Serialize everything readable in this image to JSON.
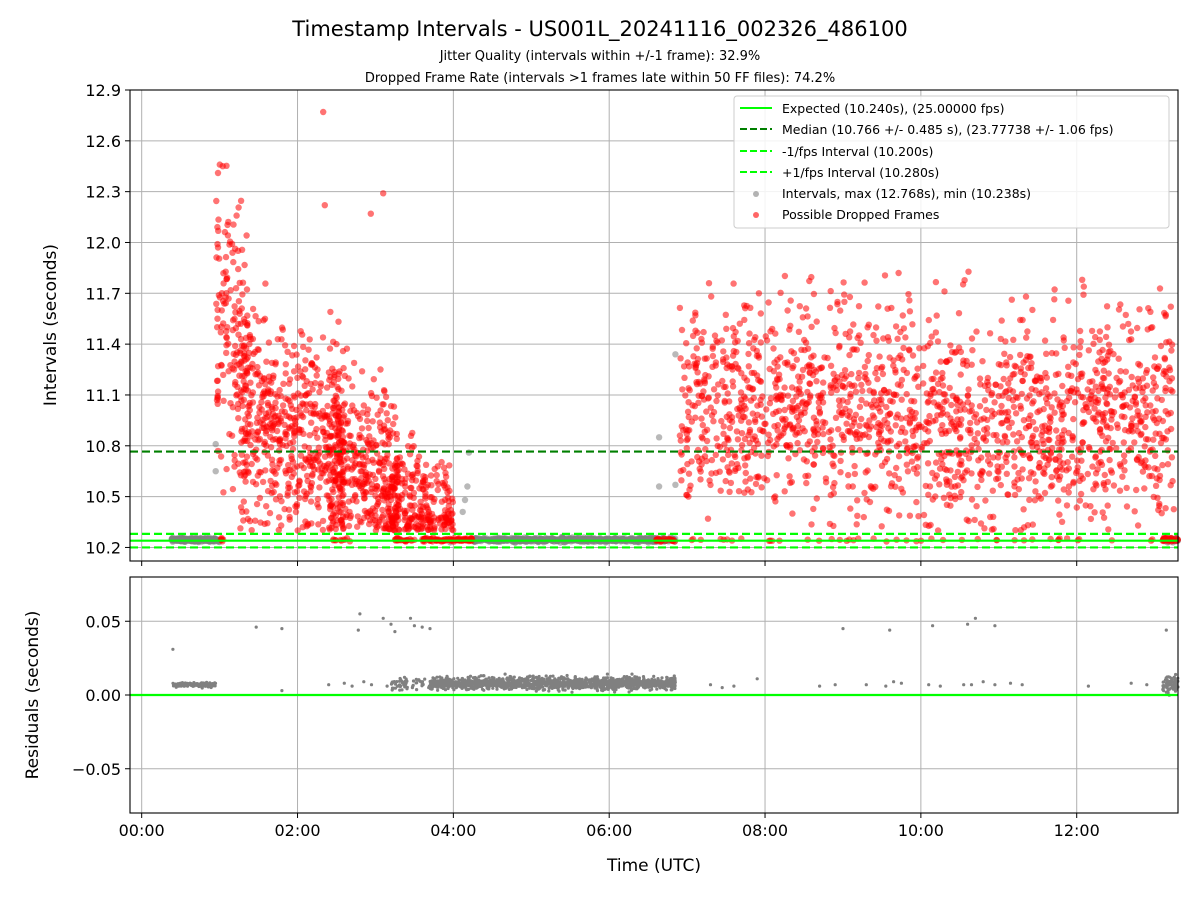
{
  "chart_data": [
    {
      "type": "scatter",
      "title": "Timestamp Intervals - US001L_20241116_002326_486100",
      "subtitles": [
        "Jitter Quality (intervals within +/-1 frame): 32.9%",
        "Dropped Frame Rate (intervals >1 frames late within 50 FF files): 74.2%"
      ],
      "xlabel": "",
      "ylabel": "Intervals (seconds)",
      "xlim_hours": [
        -0.15,
        13.3
      ],
      "ylim": [
        10.12,
        12.9
      ],
      "yticks": [
        "10.2",
        "10.5",
        "10.8",
        "11.1",
        "11.4",
        "11.7",
        "12.0",
        "12.3",
        "12.6",
        "12.9"
      ],
      "grid": true,
      "legend_position": "upper-right",
      "lines": [
        {
          "label": "Expected (10.240s), (25.00000 fps)",
          "y": 10.24,
          "style": "solid",
          "color": "#00ff00"
        },
        {
          "label": "Median (10.766 +/- 0.485 s), (23.77738 +/- 1.06 fps)",
          "y": 10.766,
          "style": "dashed",
          "color": "#007f00"
        },
        {
          "label": "-1/fps Interval (10.200s)",
          "y": 10.2,
          "style": "dashed",
          "color": "#00ff00"
        },
        {
          "label": "+1/fps Interval (10.280s)",
          "y": 10.28,
          "style": "dashed",
          "color": "#00ff00"
        }
      ],
      "series": [
        {
          "label": "Intervals, max (12.768s), min (10.238s)",
          "color": "#808080",
          "max": 12.768,
          "min": 10.238
        },
        {
          "label": "Possible Dropped Frames",
          "color": "#ff0000",
          "clusters": [
            {
              "x_range": [
                0.95,
                4.25
              ],
              "y_center": 10.95,
              "y_spread": 0.45
            },
            {
              "x_range": [
                6.9,
                13.25
              ],
              "y_center": 11.0,
              "y_spread": 0.35
            }
          ],
          "outliers": [
            {
              "x": 2.33,
              "y": 12.77
            },
            {
              "x": 2.35,
              "y": 12.22
            },
            {
              "x": 3.1,
              "y": 12.29
            },
            {
              "x": 2.94,
              "y": 12.17
            },
            {
              "x": 1.04,
              "y": 12.45
            },
            {
              "x": 0.98,
              "y": 12.41
            }
          ]
        }
      ]
    },
    {
      "type": "scatter",
      "xlabel": "Time (UTC)",
      "ylabel": "Residuals (seconds)",
      "xlim_hours": [
        -0.15,
        13.3
      ],
      "ylim": [
        -0.08,
        0.08
      ],
      "xticks": [
        "00:00",
        "02:00",
        "04:00",
        "06:00",
        "08:00",
        "10:00",
        "12:00"
      ],
      "yticks": [
        "−0.05",
        "0.00",
        "0.05"
      ],
      "grid": true,
      "baseline": {
        "y": 0.0,
        "color": "#00ff00"
      },
      "series": [
        {
          "color": "#808080",
          "dense_band": {
            "x_range": [
              3.7,
              6.85
            ],
            "y_center": 0.008,
            "y_spread": 0.003
          },
          "band_start": {
            "x_range": [
              0.4,
              0.95
            ],
            "y": 0.007
          },
          "band_end": {
            "x_range": [
              13.1,
              13.3
            ],
            "y": 0.007
          },
          "outliers": [
            {
              "x": 0.4,
              "y": 0.031
            },
            {
              "x": 1.47,
              "y": 0.046
            },
            {
              "x": 1.8,
              "y": 0.045
            },
            {
              "x": 2.8,
              "y": 0.055
            },
            {
              "x": 2.78,
              "y": 0.044
            },
            {
              "x": 3.1,
              "y": 0.052
            },
            {
              "x": 3.2,
              "y": 0.048
            },
            {
              "x": 3.25,
              "y": 0.043
            },
            {
              "x": 3.45,
              "y": 0.052
            },
            {
              "x": 3.5,
              "y": 0.047
            },
            {
              "x": 3.6,
              "y": 0.046
            },
            {
              "x": 3.7,
              "y": 0.045
            },
            {
              "x": 9.0,
              "y": 0.045
            },
            {
              "x": 9.6,
              "y": 0.044
            },
            {
              "x": 10.15,
              "y": 0.047
            },
            {
              "x": 10.6,
              "y": 0.048
            },
            {
              "x": 10.7,
              "y": 0.052
            },
            {
              "x": 10.95,
              "y": 0.047
            },
            {
              "x": 13.15,
              "y": 0.044
            },
            {
              "x": 1.8,
              "y": 0.003
            },
            {
              "x": 2.4,
              "y": 0.007
            },
            {
              "x": 2.6,
              "y": 0.008
            },
            {
              "x": 2.7,
              "y": 0.006
            },
            {
              "x": 2.85,
              "y": 0.009
            },
            {
              "x": 2.95,
              "y": 0.007
            },
            {
              "x": 3.15,
              "y": 0.006
            },
            {
              "x": 7.3,
              "y": 0.007
            },
            {
              "x": 7.45,
              "y": 0.005
            },
            {
              "x": 7.6,
              "y": 0.006
            },
            {
              "x": 7.9,
              "y": 0.011
            },
            {
              "x": 8.7,
              "y": 0.006
            },
            {
              "x": 8.9,
              "y": 0.007
            },
            {
              "x": 9.3,
              "y": 0.007
            },
            {
              "x": 9.55,
              "y": 0.006
            },
            {
              "x": 9.65,
              "y": 0.009
            },
            {
              "x": 9.75,
              "y": 0.008
            },
            {
              "x": 10.1,
              "y": 0.007
            },
            {
              "x": 10.25,
              "y": 0.006
            },
            {
              "x": 10.55,
              "y": 0.007
            },
            {
              "x": 10.65,
              "y": 0.007
            },
            {
              "x": 10.8,
              "y": 0.009
            },
            {
              "x": 10.95,
              "y": 0.007
            },
            {
              "x": 11.15,
              "y": 0.008
            },
            {
              "x": 11.3,
              "y": 0.007
            },
            {
              "x": 12.15,
              "y": 0.006
            },
            {
              "x": 12.7,
              "y": 0.008
            },
            {
              "x": 12.9,
              "y": 0.007
            }
          ]
        }
      ]
    }
  ]
}
